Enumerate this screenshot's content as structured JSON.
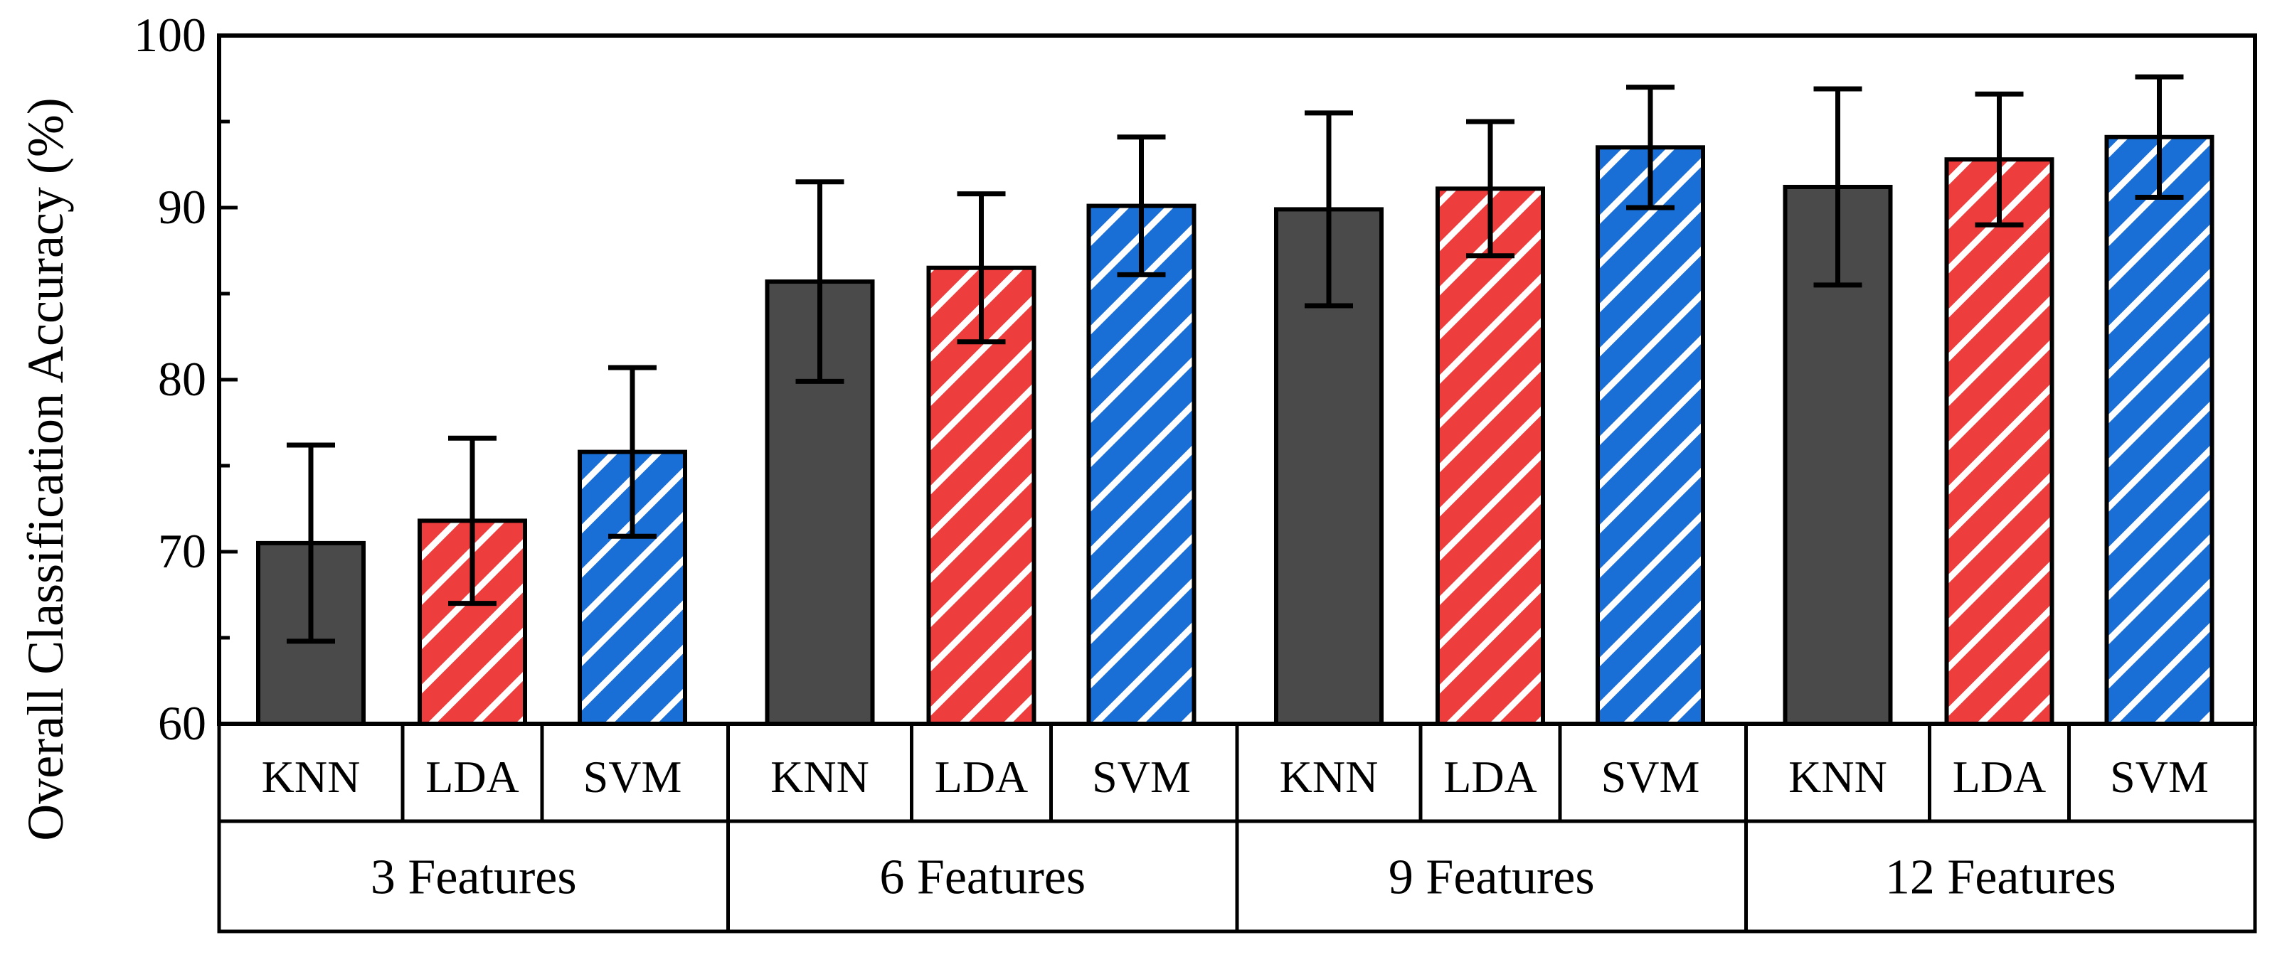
{
  "chart_data": {
    "type": "bar",
    "title": "",
    "xlabel": "",
    "ylabel": "Overall Classification Accuracy (%)",
    "ylim": [
      60,
      100
    ],
    "yticks": [
      "60",
      "70",
      "80",
      "90",
      "100"
    ],
    "groups": [
      "3 Features",
      "6 Features",
      "9 Features",
      "12 Features"
    ],
    "classifiers": [
      "KNN",
      "LDA",
      "SVM"
    ],
    "series": [
      {
        "name": "KNN",
        "color": "#4a4a4a",
        "pattern": "solid",
        "values": [
          70.5,
          85.7,
          89.9,
          91.2
        ],
        "errors": [
          5.7,
          5.8,
          5.6,
          5.7
        ]
      },
      {
        "name": "LDA",
        "color": "#ee3d3d",
        "pattern": "white-hatch",
        "values": [
          71.8,
          86.5,
          91.1,
          92.8
        ],
        "errors": [
          4.8,
          4.3,
          3.9,
          3.8
        ]
      },
      {
        "name": "SVM",
        "color": "#1a6fd6",
        "pattern": "white-hatch",
        "values": [
          75.8,
          90.1,
          93.5,
          94.1
        ],
        "errors": [
          4.9,
          4.0,
          3.5,
          3.5
        ]
      }
    ],
    "grid": false,
    "legend": "none"
  }
}
